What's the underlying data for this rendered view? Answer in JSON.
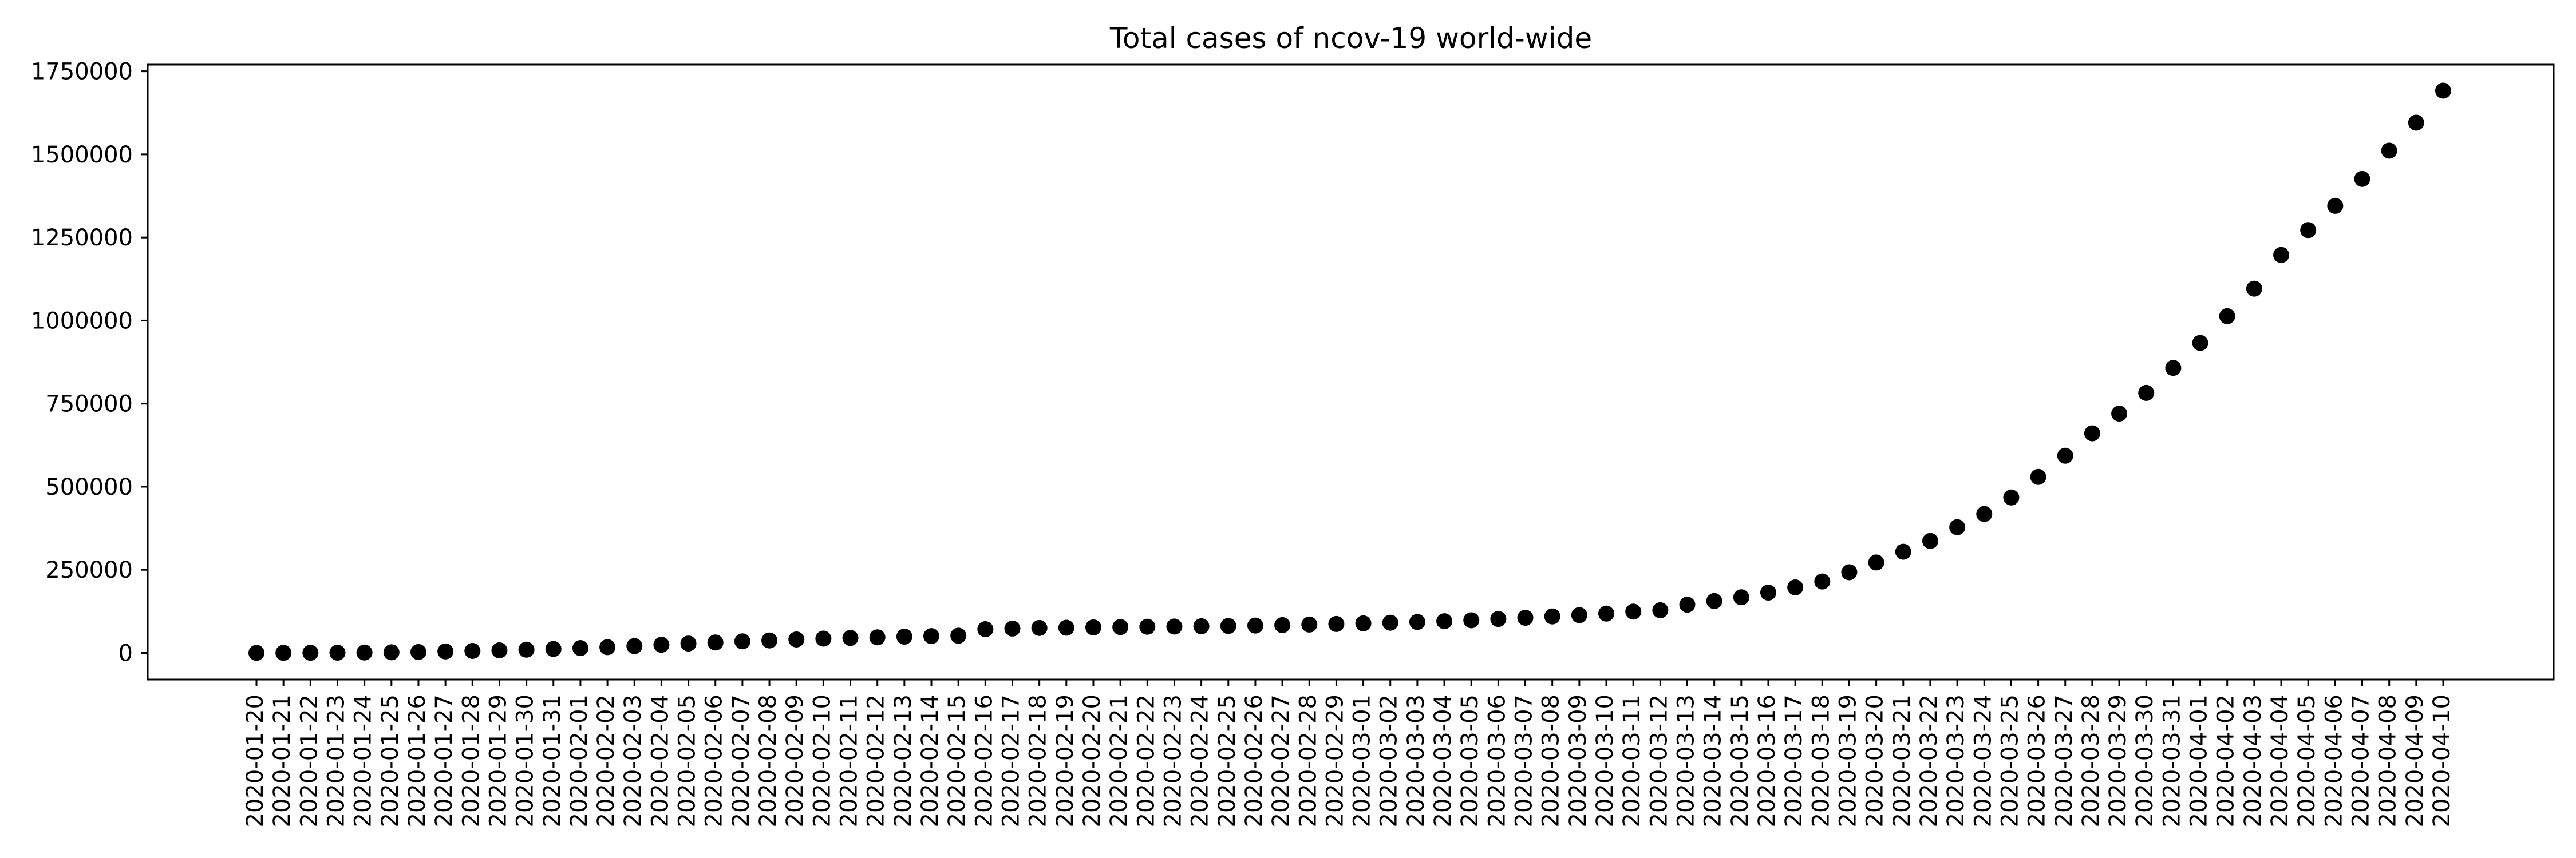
{
  "chart_data": {
    "type": "scatter",
    "title": "Total cases of ncov-19 world-wide",
    "xlabel": "",
    "ylabel": "",
    "x": [
      "2020-01-20",
      "2020-01-21",
      "2020-01-22",
      "2020-01-23",
      "2020-01-24",
      "2020-01-25",
      "2020-01-26",
      "2020-01-27",
      "2020-01-28",
      "2020-01-29",
      "2020-01-30",
      "2020-01-31",
      "2020-02-01",
      "2020-02-02",
      "2020-02-03",
      "2020-02-04",
      "2020-02-05",
      "2020-02-06",
      "2020-02-07",
      "2020-02-08",
      "2020-02-09",
      "2020-02-10",
      "2020-02-11",
      "2020-02-12",
      "2020-02-13",
      "2020-02-14",
      "2020-02-15",
      "2020-02-16",
      "2020-02-17",
      "2020-02-18",
      "2020-02-19",
      "2020-02-20",
      "2020-02-21",
      "2020-02-22",
      "2020-02-23",
      "2020-02-24",
      "2020-02-25",
      "2020-02-26",
      "2020-02-27",
      "2020-02-28",
      "2020-02-29",
      "2020-03-01",
      "2020-03-02",
      "2020-03-03",
      "2020-03-04",
      "2020-03-05",
      "2020-03-06",
      "2020-03-07",
      "2020-03-08",
      "2020-03-09",
      "2020-03-10",
      "2020-03-11",
      "2020-03-12",
      "2020-03-13",
      "2020-03-14",
      "2020-03-15",
      "2020-03-16",
      "2020-03-17",
      "2020-03-18",
      "2020-03-19",
      "2020-03-20",
      "2020-03-21",
      "2020-03-22",
      "2020-03-23",
      "2020-03-24",
      "2020-03-25",
      "2020-03-26",
      "2020-03-27",
      "2020-03-28",
      "2020-03-29",
      "2020-03-30",
      "2020-03-31",
      "2020-04-01",
      "2020-04-02",
      "2020-04-03",
      "2020-04-04",
      "2020-04-05",
      "2020-04-06",
      "2020-04-07",
      "2020-04-08",
      "2020-04-09",
      "2020-04-10"
    ],
    "xticks": [
      "2020-01-20",
      "2020-01-21",
      "2020-01-22",
      "2020-01-23",
      "2020-01-24",
      "2020-01-25",
      "2020-01-26",
      "2020-01-27",
      "2020-01-28",
      "2020-01-29",
      "2020-01-30",
      "2020-01-31",
      "2020-02-01",
      "2020-02-02",
      "2020-02-03",
      "2020-02-04",
      "2020-02-05",
      "2020-02-06",
      "2020-02-07",
      "2020-02-08",
      "2020-02-09",
      "2020-02-10",
      "2020-02-11",
      "2020-02-12",
      "2020-02-13",
      "2020-02-14",
      "2020-02-15",
      "2020-02-16",
      "2020-02-17",
      "2020-02-18",
      "2020-02-19",
      "2020-02-20",
      "2020-02-21",
      "2020-02-22",
      "2020-02-23",
      "2020-02-24",
      "2020-02-25",
      "2020-02-26",
      "2020-02-27",
      "2020-02-28",
      "2020-02-29",
      "2020-03-01",
      "2020-03-02",
      "2020-03-03",
      "2020-03-04",
      "2020-03-05",
      "2020-03-06",
      "2020-03-07",
      "2020-03-08",
      "2020-03-09",
      "2020-03-10",
      "2020-03-11",
      "2020-03-12",
      "2020-03-13",
      "2020-03-14",
      "2020-03-15",
      "2020-03-16",
      "2020-03-17",
      "2020-03-18",
      "2020-03-19",
      "2020-03-20",
      "2020-03-21",
      "2020-03-22",
      "2020-03-23",
      "2020-03-24",
      "2020-03-25",
      "2020-03-26",
      "2020-03-27",
      "2020-03-28",
      "2020-03-29",
      "2020-03-30",
      "2020-03-31",
      "2020-04-01",
      "2020-04-02",
      "2020-04-03",
      "2020-04-04",
      "2020-04-05",
      "2020-04-06",
      "2020-04-07",
      "2020-04-08",
      "2020-04-09",
      "2020-04-10"
    ],
    "y": [
      282,
      314,
      581,
      846,
      1320,
      2014,
      2798,
      4593,
      6065,
      7818,
      9826,
      11953,
      14557,
      17391,
      20630,
      24554,
      28276,
      31481,
      34886,
      37558,
      40554,
      43103,
      45171,
      46997,
      49053,
      50580,
      51857,
      71429,
      73332,
      75204,
      75748,
      76769,
      77794,
      78811,
      79331,
      80239,
      81109,
      82294,
      83652,
      85403,
      87137,
      88948,
      90869,
      93090,
      95324,
      98192,
      102136,
      105836,
      109835,
      113702,
      118319,
      124335,
      128343,
      145193,
      156097,
      167449,
      181546,
      197168,
      214915,
      242713,
      272166,
      304507,
      336953,
      378235,
      418045,
      467653,
      529591,
      593291,
      660706,
      720117,
      782365,
      857487,
      932605,
      1013157,
      1095917,
      1197405,
      1272115,
      1345101,
      1426096,
      1511104,
      1595350,
      1691719
    ],
    "ylim": [
      -80000,
      1770000
    ],
    "yticks": [
      0,
      250000,
      500000,
      750000,
      1000000,
      1250000,
      1500000,
      1750000
    ],
    "ytick_labels": [
      "0",
      "250000",
      "500000",
      "750000",
      "1000000",
      "1250000",
      "1500000",
      "1750000"
    ],
    "marker_color": "#000000",
    "grid": false,
    "legend": "none"
  }
}
